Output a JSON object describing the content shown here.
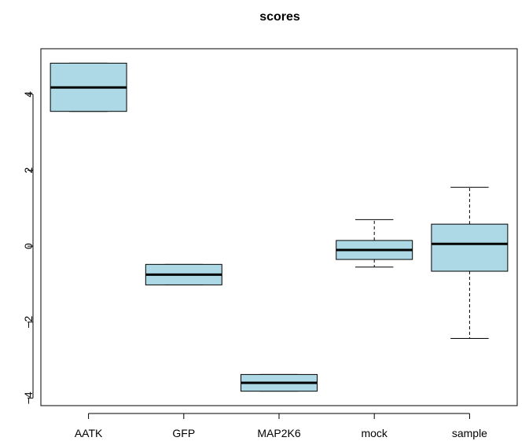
{
  "chart_data": {
    "type": "boxplot",
    "title": "scores",
    "xlabel": "",
    "ylabel": "",
    "ylim": [
      -4.2,
      5.2
    ],
    "yticks": [
      -4,
      -2,
      0,
      2,
      4
    ],
    "ytick_labels": [
      "−4",
      "−2",
      "0",
      "2",
      "4"
    ],
    "categories": [
      "AATK",
      "GFP",
      "MAP2K6",
      "mock",
      "sample"
    ],
    "box_color": "#add8e6",
    "boxes": [
      {
        "label": "AATK",
        "whisker_low": 3.55,
        "q1": 3.55,
        "median": 4.18,
        "q3": 4.82,
        "whisker_high": 4.82
      },
      {
        "label": "GFP",
        "whisker_low": -1.02,
        "q1": -1.02,
        "median": -0.75,
        "q3": -0.48,
        "whisker_high": -0.48
      },
      {
        "label": "MAP2K6",
        "whisker_low": -3.82,
        "q1": -3.82,
        "median": -3.6,
        "q3": -3.38,
        "whisker_high": -3.38
      },
      {
        "label": "mock",
        "whisker_low": -0.55,
        "q1": -0.35,
        "median": -0.1,
        "q3": 0.15,
        "whisker_high": 0.7
      },
      {
        "label": "sample",
        "whisker_low": -2.43,
        "q1": -0.66,
        "median": 0.06,
        "q3": 0.58,
        "whisker_high": 1.55
      }
    ]
  }
}
